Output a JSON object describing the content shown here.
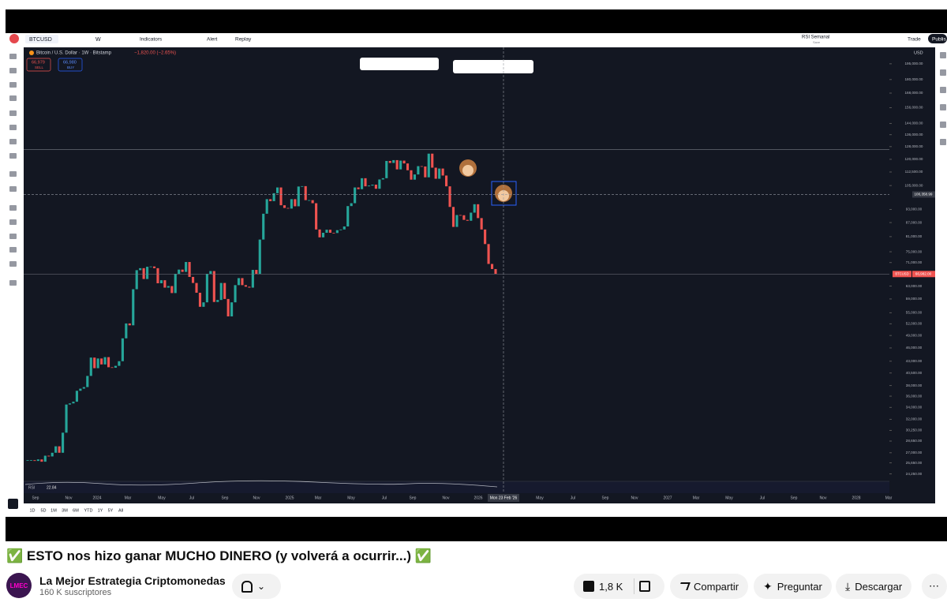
{
  "toolbar": {
    "symbol": "BTCUSD",
    "interval": "W",
    "indicators": "Indicators",
    "alert": "Alert",
    "replay": "Replay",
    "layout_name": "RSI Semanal",
    "layout_sub": "Save",
    "trade": "Trade",
    "publish": "Publis"
  },
  "legend": {
    "name": "Bitcoin / U.S. Dollar · 1W · Bitstamp",
    "change": "−1,820.00 (−2.65%)",
    "sell_price": "66,979",
    "sell": "SELL",
    "buy_price": "66,980",
    "buy": "BUY"
  },
  "chart_data": {
    "type": "candlestick",
    "currency": "USD",
    "log_scale": true,
    "colors": {
      "up": "#26a69a",
      "down": "#ef5350"
    },
    "ylim": [
      23350,
      212000
    ],
    "yticks": [
      {
        "value": 195000,
        "label": "195,000.00"
      },
      {
        "value": 180000,
        "label": "180,000.00"
      },
      {
        "value": 168000,
        "label": "168,000.00"
      },
      {
        "value": 156000,
        "label": "156,000.00"
      },
      {
        "value": 144000,
        "label": "144,000.00"
      },
      {
        "value": 136000,
        "label": "136,000.00"
      },
      {
        "value": 128000,
        "label": "128,000.00"
      },
      {
        "value": 120000,
        "label": "120,000.00"
      },
      {
        "value": 112500,
        "label": "112,500.00"
      },
      {
        "value": 105000,
        "label": "105,000.00"
      },
      {
        "value": 93000,
        "label": "93,000.00"
      },
      {
        "value": 87000,
        "label": "87,000.00"
      },
      {
        "value": 81000,
        "label": "81,000.00"
      },
      {
        "value": 75000,
        "label": "75,000.00"
      },
      {
        "value": 71000,
        "label": "71,000.00"
      },
      {
        "value": 63000,
        "label": "63,000.00"
      },
      {
        "value": 59000,
        "label": "59,000.00"
      },
      {
        "value": 55000,
        "label": "55,000.00"
      },
      {
        "value": 52000,
        "label": "52,000.00"
      },
      {
        "value": 49000,
        "label": "49,000.00"
      },
      {
        "value": 46000,
        "label": "46,000.00"
      },
      {
        "value": 43000,
        "label": "43,000.00"
      },
      {
        "value": 40500,
        "label": "40,500.00"
      },
      {
        "value": 38000,
        "label": "38,000.00"
      },
      {
        "value": 36000,
        "label": "36,000.00"
      },
      {
        "value": 34000,
        "label": "34,000.00"
      },
      {
        "value": 32000,
        "label": "32,000.00"
      },
      {
        "value": 30250,
        "label": "30,250.00"
      },
      {
        "value": 28650,
        "label": "28,650.00"
      },
      {
        "value": 27000,
        "label": "27,000.00"
      },
      {
        "value": 25650,
        "label": "25,650.00"
      },
      {
        "value": 24250,
        "label": "24,250.00"
      }
    ],
    "x_axis_labels": [
      "Sep",
      "Nov",
      "2024",
      "Mar",
      "May",
      "Jul",
      "Sep",
      "Nov",
      "2025",
      "Mar",
      "May",
      "Jul",
      "Sep",
      "Nov",
      "2026",
      "May",
      "Jul",
      "Sep",
      "Nov",
      "2027",
      "Mar",
      "May",
      "Jul",
      "Sep",
      "Nov",
      "2028",
      "Mar"
    ],
    "series": [
      {
        "name": "BTCUSD",
        "values": [
          26000,
          26000,
          25900,
          26100,
          25800,
          26600,
          26500,
          27000,
          27900,
          27000,
          29900,
          34500,
          34700,
          35000,
          37000,
          37400,
          37700,
          39900,
          43800,
          41500,
          43600,
          42300,
          43900,
          41700,
          41600,
          42000,
          43000,
          48300,
          52100,
          51600,
          62000,
          68300,
          69000,
          65300,
          69500,
          69600,
          69000,
          63900,
          64900,
          62500,
          63000,
          60800,
          67000,
          68500,
          67700,
          71200,
          66000,
          64000,
          60900,
          56700,
          58000,
          67000,
          68000,
          58100,
          58700,
          64000,
          59000,
          54000,
          58000,
          63300,
          65600,
          63300,
          62800,
          62500,
          68400,
          67000,
          79800,
          91000,
          98000,
          97000,
          101000,
          104000,
          95000,
          93700,
          93400,
          98000,
          94500,
          104500,
          104700,
          97500,
          97500,
          96000,
          84000,
          80700,
          82600,
          83900,
          82600,
          82500,
          83700,
          84000,
          85300,
          94600,
          96000,
          104000,
          103100,
          109000,
          104600,
          105000,
          105500,
          103300,
          108300,
          109000,
          119000,
          117800,
          119500,
          114000,
          119200,
          117500,
          113500,
          108200,
          111100,
          115900,
          115700,
          109500,
          123500,
          115000,
          108700,
          114500,
          110500,
          104600,
          94200,
          85100,
          90400,
          90300,
          88200,
          87800,
          91500,
          95500,
          89000,
          84000,
          78000,
          70500,
          68700,
          66982
        ]
      }
    ],
    "last_price": {
      "value": 66982,
      "label": "66,982.00"
    },
    "hlines": [
      126000
    ],
    "crosshair": {
      "price": {
        "value": 100358.99,
        "label": "100,358.99"
      },
      "date": "Mon 23 Feb '26"
    },
    "rsi": {
      "name": "RSI",
      "value": 22.84
    },
    "range_buttons": [
      "1D",
      "5D",
      "1M",
      "3M",
      "6M",
      "YTD",
      "1Y",
      "5Y",
      "All"
    ]
  },
  "video": {
    "title": "✅ ESTO nos hizo ganar MUCHO DINERO (y volverá a ocurrir...) ✅",
    "avatar": "LMEC",
    "channel": "La Mejor Estrategia Criptomonedas",
    "subscribers": "160 K suscriptores",
    "likes": "1,8 K",
    "share": "Compartir",
    "ask": "Preguntar",
    "download": "Descargar"
  }
}
